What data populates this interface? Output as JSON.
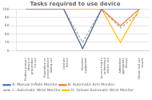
{
  "chart_data": {
    "type": "line",
    "title": "Tasks required to use device",
    "categories": [
      "Position person/\ndevice in\npreparation\nfor use",
      "Reposition on\nperson/device\nduring use",
      "Operate\ndevice",
      "Maintain\nequipment",
      "Access help to\nunderstand\ndevice use",
      "Administer\nappropriate\ndosage",
      "Obtain and use\nresults"
    ],
    "series": [
      {
        "name": "A: Manual Inflate Monitor",
        "color": "#4472C4",
        "line_style": "solid",
        "values": [
          100,
          100,
          100,
          5,
          100,
          100,
          100
        ]
      },
      {
        "name": "B: Automatic Arm Monitor",
        "color": "#ED7D31",
        "line_style": "solid",
        "values": [
          100,
          100,
          100,
          100,
          100,
          60,
          100
        ]
      },
      {
        "name": "C: Automatic Wrist Monitor",
        "color": "#A5A5A5",
        "line_style": "dashed",
        "values": [
          100,
          100,
          100,
          20,
          100,
          55,
          90
        ]
      },
      {
        "name": "D: Deluxe Automatic Wrist Monitor",
        "color": "#FFC000",
        "line_style": "solid",
        "values": [
          100,
          100,
          100,
          5,
          100,
          20,
          100
        ]
      }
    ],
    "ylim": [
      0,
      100
    ],
    "yticks": [
      0,
      20,
      40,
      60,
      80,
      100
    ],
    "grid": true,
    "legend": "lower left"
  }
}
